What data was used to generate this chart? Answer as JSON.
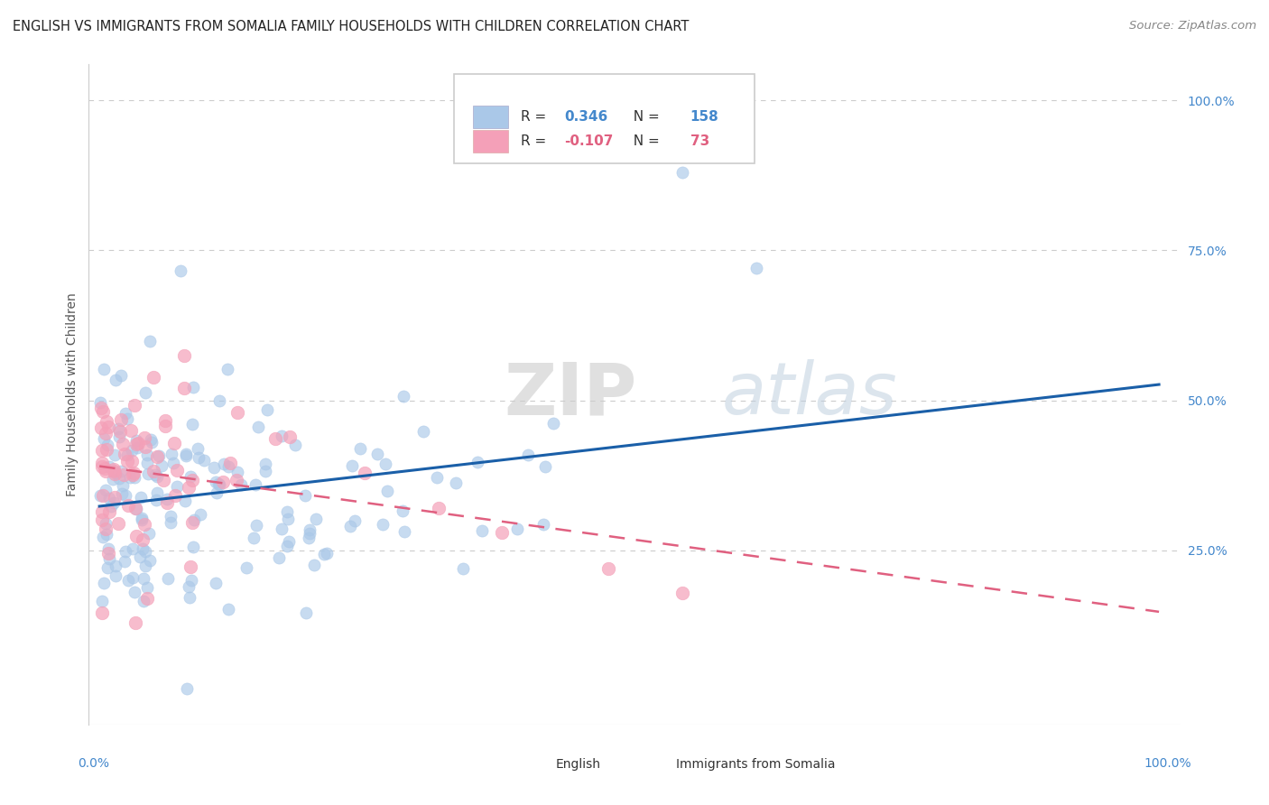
{
  "title": "ENGLISH VS IMMIGRANTS FROM SOMALIA FAMILY HOUSEHOLDS WITH CHILDREN CORRELATION CHART",
  "source": "Source: ZipAtlas.com",
  "ylabel": "Family Households with Children",
  "legend_english": "English",
  "legend_somalia": "Immigrants from Somalia",
  "r_english": 0.346,
  "n_english": 158,
  "r_somalia": -0.107,
  "n_somalia": 73,
  "english_color": "#aac8e8",
  "somalia_color": "#f4a0b8",
  "english_line_color": "#1a5fa8",
  "somalia_line_color": "#e06080",
  "watermark_zip": "ZIP",
  "watermark_atlas": "atlas",
  "background_color": "#ffffff",
  "grid_color": "#cccccc",
  "right_tick_color": "#4488cc",
  "title_fontsize": 10.5,
  "axis_label_fontsize": 10,
  "tick_label_fontsize": 10,
  "legend_fontsize": 11,
  "source_fontsize": 9.5
}
